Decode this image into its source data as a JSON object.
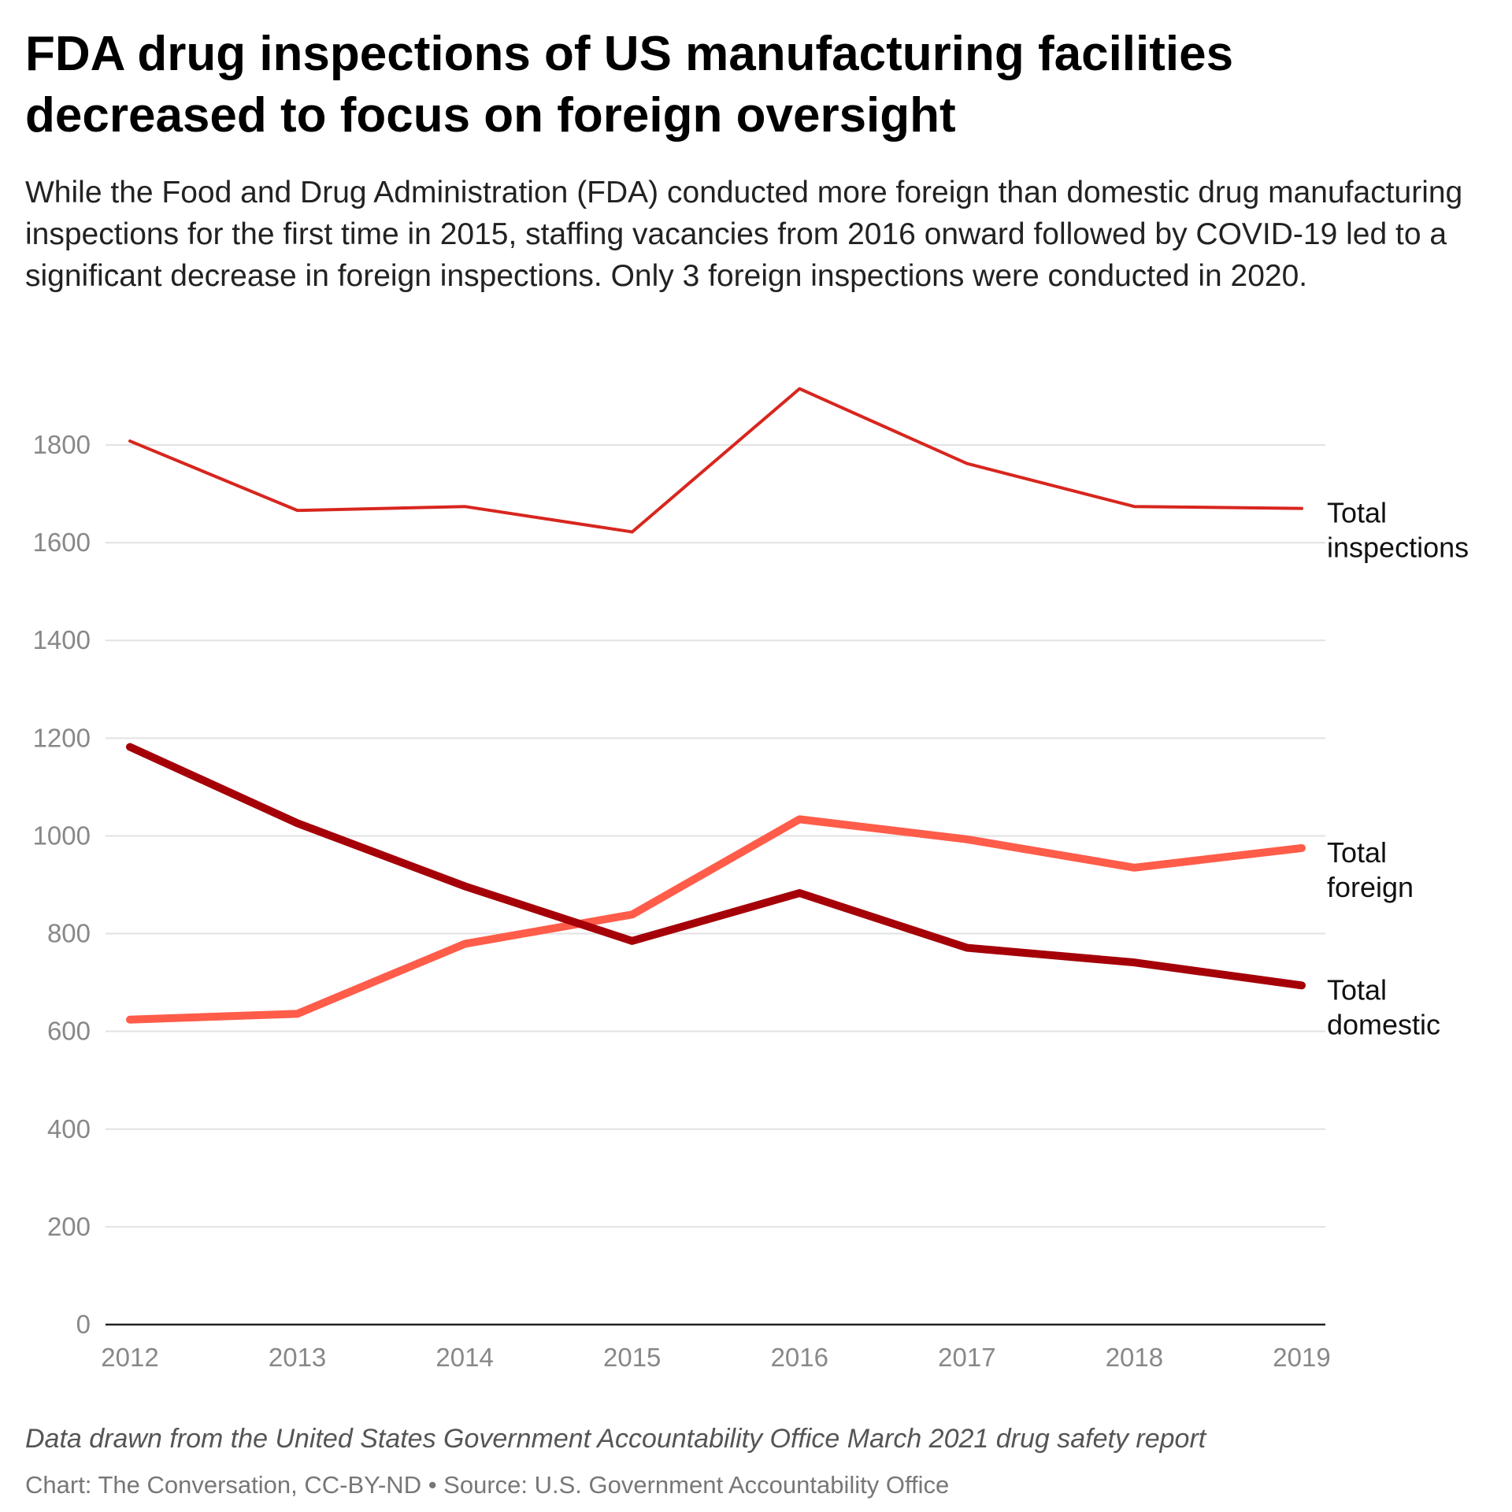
{
  "header": {
    "title": "FDA drug inspections of US manufacturing facilities decreased to focus on foreign oversight",
    "subtitle": "While the Food and Drug Administration (FDA) conducted more foreign than domestic drug manufacturing inspections for the first time in 2015, staffing vacancies from 2016 onward followed by COVID-19 led to a significant decrease in foreign inspections. Only 3 foreign inspections were conducted in 2020."
  },
  "footer": {
    "note": "Data drawn from the United States Government Accountability Office March 2021 drug safety report",
    "credit": "Chart: The Conversation, CC-BY-ND • Source: U.S. Government Accountability Office"
  },
  "chart_data": {
    "type": "line",
    "title": "",
    "xlabel": "",
    "ylabel": "",
    "x": [
      "2012",
      "2013",
      "2014",
      "2015",
      "2016",
      "2017",
      "2018",
      "2019"
    ],
    "ylim": [
      0,
      1900
    ],
    "yticks": [
      0,
      200,
      400,
      600,
      800,
      1000,
      1200,
      1400,
      1600,
      1800
    ],
    "grid": true,
    "legend": "direct labels at right end of lines",
    "series": [
      {
        "name": "Total inspections",
        "label_lines": [
          "Total",
          "inspections"
        ],
        "color": "#d7261e",
        "values": [
          1808,
          1666,
          1674,
          1622,
          1915,
          1762,
          1674,
          1670
        ]
      },
      {
        "name": "Total foreign",
        "label_lines": [
          "Total",
          "foreign"
        ],
        "color": "#ff5c4a",
        "values": [
          624,
          636,
          779,
          839,
          1034,
          993,
          935,
          975
        ]
      },
      {
        "name": "Total domestic",
        "label_lines": [
          "Total",
          "domestic"
        ],
        "color": "#a50008",
        "values": [
          1182,
          1026,
          897,
          785,
          883,
          771,
          741,
          694
        ]
      }
    ]
  }
}
